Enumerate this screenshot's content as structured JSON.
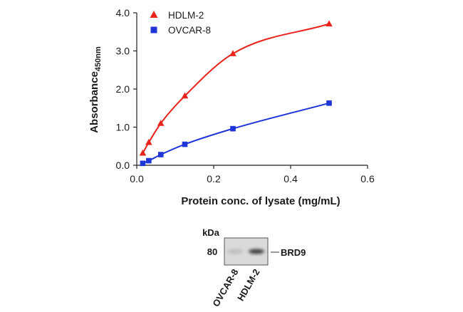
{
  "chart_data": {
    "type": "line",
    "xlabel": "Protein conc. of lysate (mg/mL)",
    "ylabel_main": "Absorbance",
    "ylabel_sub": "450nm",
    "xlim": [
      0.0,
      0.6
    ],
    "ylim": [
      0.0,
      4.0
    ],
    "x_ticks": [
      "0.0",
      "0.2",
      "0.4",
      "0.6"
    ],
    "y_ticks": [
      "0.0",
      "1.0",
      "2.0",
      "3.0",
      "4.0"
    ],
    "grid": false,
    "legend_position": "top-left",
    "series": [
      {
        "name": "HDLM-2",
        "color": "#e8241c",
        "marker": "triangle",
        "x": [
          0.0156,
          0.03125,
          0.0625,
          0.125,
          0.25,
          0.5
        ],
        "y": [
          0.32,
          0.6,
          1.1,
          1.82,
          2.93,
          3.71
        ]
      },
      {
        "name": "OVCAR-8",
        "color": "#1f35d8",
        "marker": "square",
        "x": [
          0.0156,
          0.03125,
          0.0625,
          0.125,
          0.25,
          0.5
        ],
        "y": [
          0.05,
          0.12,
          0.28,
          0.55,
          0.96,
          1.63
        ]
      }
    ]
  },
  "western_blot": {
    "kda_label": "kDa",
    "marker_value": "80",
    "band_label": "BRD9",
    "lanes": [
      {
        "label": "OVCAR-8",
        "intensity": 0.18
      },
      {
        "label": "HDLM-2",
        "intensity": 0.85
      }
    ]
  }
}
